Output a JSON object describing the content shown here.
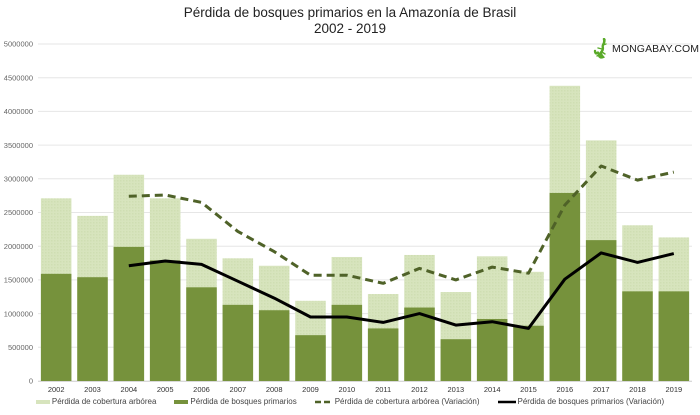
{
  "title_line1": "Pérdida de bosques primarios en la Amazonía de Brasil",
  "title_line2": "2002 - 2019",
  "logo": {
    "text": "MONGABAY.COM",
    "icon": "gecko-icon",
    "color": "#5aaa2a"
  },
  "colors": {
    "tree_cover": "#d7e4bd",
    "primary": "#76923c",
    "tree_cover_line": "#4f6228",
    "primary_line": "#000000",
    "grid": "#e6e6e6"
  },
  "chart_data": {
    "type": "bar",
    "title": "Pérdida de bosques primarios en la Amazonía de Brasil 2002 - 2019",
    "xlabel": "",
    "ylabel": "",
    "ylim": [
      0,
      5000000
    ],
    "yticks": [
      0,
      500000,
      1000000,
      1500000,
      2000000,
      2500000,
      3000000,
      3500000,
      4000000,
      4500000,
      5000000
    ],
    "ytick_labels": [
      "0",
      "500000",
      "1000000",
      "1500000",
      "2000000",
      "2500000",
      "3000000",
      "3500000",
      "4000000",
      "4500000",
      "5000000"
    ],
    "grid": true,
    "legend_position": "bottom",
    "categories": [
      "2002",
      "2003",
      "2004",
      "2005",
      "2006",
      "2007",
      "2008",
      "2009",
      "2010",
      "2011",
      "2012",
      "2013",
      "2014",
      "2015",
      "2016",
      "2017",
      "2018",
      "2019"
    ],
    "series": [
      {
        "name": "Pérdida de cobertura arbórea",
        "kind": "bar",
        "values": [
          2710000,
          2450000,
          3060000,
          2710000,
          2110000,
          1820000,
          1710000,
          1190000,
          1840000,
          1290000,
          1870000,
          1320000,
          1850000,
          1620000,
          4380000,
          3570000,
          2310000,
          2130000
        ]
      },
      {
        "name": "Pérdida de bosques primarios",
        "kind": "bar",
        "values": [
          1590000,
          1540000,
          1990000,
          1790000,
          1390000,
          1130000,
          1050000,
          680000,
          1130000,
          780000,
          1090000,
          620000,
          920000,
          820000,
          2790000,
          2090000,
          1330000,
          1330000
        ]
      },
      {
        "name": "Pérdida de cobertura arbórea (Variación)",
        "kind": "line-dashed",
        "values": [
          null,
          null,
          2740000,
          2760000,
          2650000,
          2220000,
          1920000,
          1570000,
          1570000,
          1450000,
          1670000,
          1500000,
          1690000,
          1600000,
          2610000,
          3190000,
          2980000,
          3100000
        ]
      },
      {
        "name": "Pérdida de bosques primarios (Variación)",
        "kind": "line",
        "values": [
          null,
          null,
          1710000,
          1780000,
          1730000,
          1480000,
          1230000,
          950000,
          950000,
          870000,
          1000000,
          830000,
          880000,
          780000,
          1510000,
          1900000,
          1760000,
          1890000
        ]
      }
    ]
  }
}
